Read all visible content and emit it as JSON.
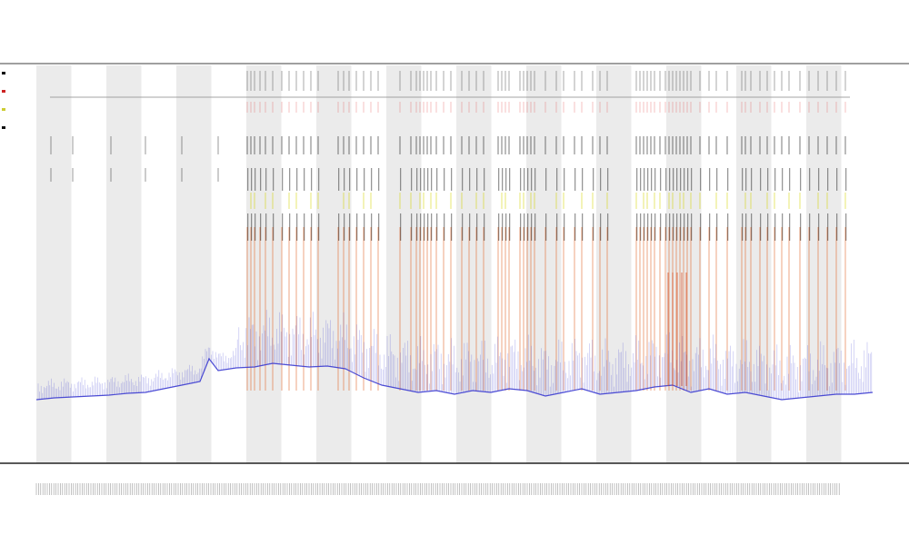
{
  "chart_data": {
    "type": "line",
    "title": "",
    "subtitle_lines": [
      "",
      ""
    ],
    "xlabel": "",
    "ylabel": "",
    "x_range": [
      0,
      1000
    ],
    "grid": false,
    "shaded_bands": true,
    "legend_position": "top-left",
    "legend": [
      {
        "name": "",
        "color": "#000000"
      },
      {
        "name": "",
        "color": "#cc2222"
      },
      {
        "name": "",
        "color": "#cccc33"
      },
      {
        "name": "",
        "color": "#111111"
      }
    ],
    "series": [
      {
        "name": "",
        "color": "#3a3ad0",
        "role": "baseline trace",
        "x": [
          40,
          60,
          80,
          100,
          120,
          140,
          160,
          180,
          200,
          220,
          230,
          240,
          260,
          280,
          300,
          320,
          340,
          360,
          380,
          400,
          420,
          440,
          460,
          480,
          500,
          520,
          540,
          560,
          580,
          600,
          620,
          640,
          660,
          680,
          700,
          720,
          740,
          760,
          780,
          800,
          820,
          840,
          860,
          880,
          900,
          920,
          940,
          960
        ],
        "y": [
          440,
          438,
          437,
          436,
          435,
          433,
          432,
          428,
          424,
          420,
          395,
          408,
          405,
          404,
          400,
          402,
          404,
          403,
          406,
          416,
          424,
          428,
          432,
          430,
          434,
          430,
          432,
          428,
          430,
          436,
          432,
          428,
          434,
          432,
          430,
          426,
          424,
          432,
          428,
          434,
          432,
          436,
          440,
          438,
          436,
          434,
          434,
          432
        ]
      }
    ],
    "spike_groups": [
      {
        "name": "",
        "color": "#111111",
        "y_top": 150,
        "y_bottom": 170
      },
      {
        "name": "",
        "color": "#111111",
        "y_top": 185,
        "y_bottom": 210
      },
      {
        "name": "",
        "color": "#d4d400",
        "y_top": 212,
        "y_bottom": 230
      },
      {
        "name": "",
        "color": "#111111",
        "y_top": 235,
        "y_bottom": 265
      },
      {
        "name": "",
        "color": "#e06020",
        "y_top": 250,
        "y_bottom": 430
      }
    ],
    "spike_columns_x": [
      272,
      276,
      280,
      286,
      292,
      300,
      310,
      318,
      326,
      334,
      342,
      350,
      372,
      378,
      384,
      392,
      400,
      408,
      416,
      440,
      452,
      458,
      462,
      466,
      470,
      474,
      480,
      488,
      496,
      508,
      516,
      524,
      532,
      548,
      552,
      556,
      560,
      572,
      576,
      580,
      584,
      588,
      600,
      612,
      620,
      632,
      640,
      652,
      660,
      668,
      700,
      704,
      708,
      712,
      716,
      720,
      726,
      732,
      736,
      740,
      744,
      748,
      752,
      756,
      760,
      770,
      780,
      788,
      800,
      816,
      820,
      826,
      836,
      844,
      852,
      860,
      868,
      880,
      890,
      900,
      910,
      920,
      930
    ]
  }
}
